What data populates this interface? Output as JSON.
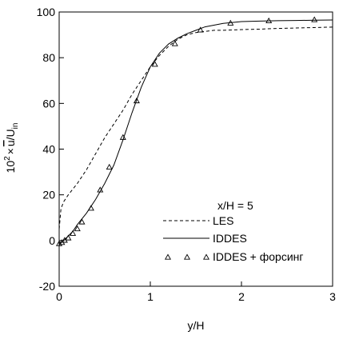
{
  "chart_data": {
    "type": "line",
    "xlabel": "y/H",
    "ylabel": {
      "base": "10",
      "exp": "2",
      "times": "×",
      "u": "u",
      "over": "/U",
      "sub": "in"
    },
    "xlim": [
      0,
      3
    ],
    "ylim": [
      -20,
      100
    ],
    "xticks": [
      0,
      1,
      2,
      3
    ],
    "yticks": [
      -20,
      0,
      20,
      40,
      60,
      80,
      100
    ],
    "grid": false,
    "legend_title": "x/H = 5",
    "legend_placement": "bottom-right",
    "series": [
      {
        "name": "LES",
        "style": "dashed",
        "x": [
          0,
          0.02,
          0.05,
          0.1,
          0.2,
          0.3,
          0.4,
          0.5,
          0.6,
          0.7,
          0.8,
          0.9,
          1.0,
          1.1,
          1.2,
          1.3,
          1.4,
          1.5,
          1.6,
          1.7,
          1.8,
          2.0,
          2.2,
          2.4,
          2.6,
          2.8,
          3.0
        ],
        "y": [
          5,
          14,
          17,
          20,
          25,
          31,
          38,
          45,
          51,
          57,
          64,
          70,
          76,
          81,
          85,
          88,
          90,
          91,
          91.5,
          92,
          92,
          92.3,
          92.5,
          92.8,
          93,
          93.2,
          93.4
        ]
      },
      {
        "name": "IDDES",
        "style": "solid",
        "x": [
          0,
          0.02,
          0.05,
          0.1,
          0.15,
          0.2,
          0.3,
          0.4,
          0.5,
          0.6,
          0.7,
          0.8,
          0.9,
          1.0,
          1.1,
          1.2,
          1.3,
          1.4,
          1.5,
          1.6,
          1.8,
          2.0,
          2.2,
          2.4,
          2.6,
          2.8,
          3.0
        ],
        "y": [
          -2,
          -1,
          0,
          2,
          4,
          7,
          12,
          18,
          25,
          33,
          44,
          56,
          67,
          76,
          82,
          86,
          88.5,
          90.5,
          92,
          93.5,
          95,
          95.8,
          96,
          96.2,
          96.3,
          96.4,
          96.5
        ]
      },
      {
        "name": "IDDES + форсинг",
        "style": "triangles",
        "x": [
          0,
          0.03,
          0.06,
          0.1,
          0.15,
          0.2,
          0.25,
          0.35,
          0.45,
          0.55,
          0.7,
          0.85,
          1.05,
          1.27,
          1.55,
          1.88,
          2.3,
          2.8
        ],
        "y": [
          -1.5,
          -1,
          0,
          1,
          3,
          5,
          8,
          14,
          22,
          32,
          45,
          61,
          77,
          86,
          92,
          95,
          96,
          96.5
        ]
      }
    ]
  }
}
